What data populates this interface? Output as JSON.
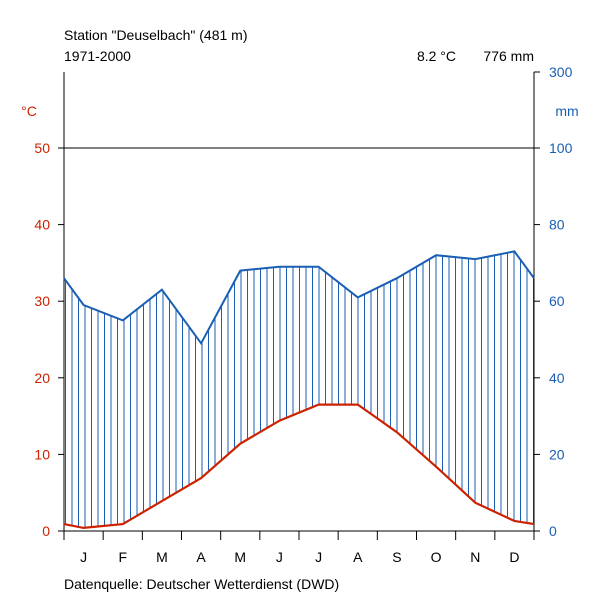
{
  "chart_data": {
    "type": "line",
    "title": "Station \"Deuselbach\" (481 m)",
    "period": "1971-2000",
    "annual_temp": "8.2 °C",
    "annual_precip": "776 mm",
    "source": "Datenquelle: Deutscher Wetterdienst (DWD)",
    "left_unit": "°C",
    "right_unit": "mm",
    "months": [
      "J",
      "F",
      "M",
      "A",
      "M",
      "J",
      "J",
      "A",
      "S",
      "O",
      "N",
      "D"
    ],
    "left_ticks": [
      "0",
      "10",
      "20",
      "30",
      "40",
      "50"
    ],
    "right_ticks": [
      "0",
      "20",
      "40",
      "60",
      "80",
      "100",
      "300"
    ],
    "temperature_c": [
      0.4,
      0.9,
      3.9,
      6.9,
      11.4,
      14.4,
      16.5,
      16.5,
      12.9,
      8.4,
      3.7,
      1.3
    ],
    "temperature_ends": [
      0.9,
      0.9
    ],
    "precipitation_mm": [
      59,
      55,
      63,
      49,
      68,
      69,
      69,
      61,
      66,
      72,
      71,
      73
    ],
    "precipitation_ends": [
      66,
      66
    ],
    "ylim_temp": [
      0,
      50
    ],
    "ylim_precip_linear": [
      0,
      100
    ],
    "colors": {
      "temperature": "#cc2200",
      "precipitation": "#1a5fb4",
      "axis": "#000000",
      "hatch": "#1a5fb4"
    }
  }
}
